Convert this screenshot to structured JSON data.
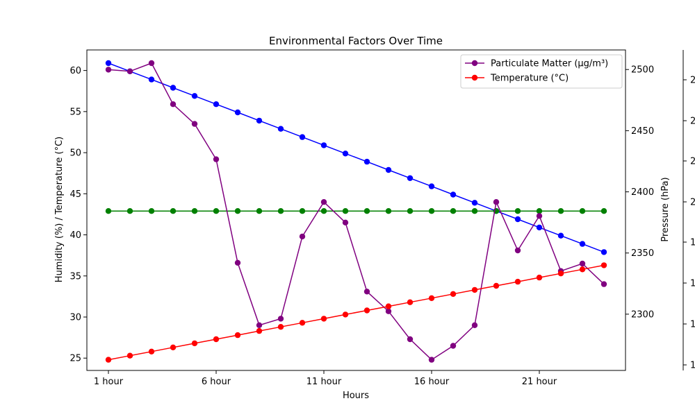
{
  "chart_data": {
    "type": "line",
    "title": "Environmental Factors Over Time",
    "xlabel": "Hours",
    "ylabel_left": "Humidity (%) / Temperature (°C)",
    "ylabel_right": "Pressure (hPa)",
    "x_tick_labels": [
      "1 hour",
      "6 hour",
      "11 hour",
      "16 hour",
      "21 hour"
    ],
    "x_tick_positions": [
      1,
      6,
      11,
      16,
      21
    ],
    "x_range": [
      0,
      25
    ],
    "ylim_left": [
      23.5,
      62.5
    ],
    "yticks_left": [
      25,
      30,
      35,
      40,
      45,
      50,
      55,
      60
    ],
    "ylim_right": [
      2254,
      2516
    ],
    "yticks_right": [
      2300,
      2350,
      2400,
      2450,
      2500
    ],
    "third_axis_ticks": [
      "1",
      "1",
      "1",
      "1",
      "2",
      "2",
      "2",
      "2"
    ],
    "legend": {
      "placement": "top-right",
      "entries": [
        "Particulate Matter (µg/m³)",
        "Temperature (°C)"
      ]
    },
    "hours": [
      1,
      2,
      3,
      4,
      5,
      6,
      7,
      8,
      9,
      10,
      11,
      12,
      13,
      14,
      15,
      16,
      17,
      18,
      19,
      20,
      21,
      22,
      23,
      24
    ],
    "series": [
      {
        "key": "humidity",
        "axis": "left",
        "color": "#0000ff",
        "values": [
          60.9,
          59.9,
          58.9,
          57.9,
          56.9,
          55.9,
          54.9,
          53.9,
          52.9,
          51.9,
          50.9,
          49.9,
          48.9,
          47.9,
          46.9,
          45.9,
          44.9,
          43.9,
          42.9,
          41.9,
          40.9,
          39.9,
          38.9,
          37.9
        ]
      },
      {
        "key": "flat",
        "axis": "left",
        "color": "#008000",
        "values": [
          42.9,
          42.9,
          42.9,
          42.9,
          42.9,
          42.9,
          42.9,
          42.9,
          42.9,
          42.9,
          42.9,
          42.9,
          42.9,
          42.9,
          42.9,
          42.9,
          42.9,
          42.9,
          42.9,
          42.9,
          42.9,
          42.9,
          42.9,
          42.9
        ]
      },
      {
        "name": "Particulate Matter (µg/m³)",
        "axis": "left",
        "color": "#800080",
        "values": [
          60.1,
          59.9,
          60.9,
          55.9,
          53.5,
          49.2,
          36.6,
          29.0,
          29.8,
          39.8,
          44.0,
          41.5,
          33.1,
          30.7,
          27.3,
          24.8,
          26.5,
          29.0,
          44.0,
          38.1,
          42.3,
          35.6,
          36.5,
          34.0
        ]
      },
      {
        "name": "Temperature (°C)",
        "axis": "left",
        "color": "#ff0000",
        "values": [
          24.8,
          25.3,
          25.8,
          26.3,
          26.8,
          27.3,
          27.8,
          28.3,
          28.8,
          29.3,
          29.8,
          30.3,
          30.8,
          31.3,
          31.8,
          32.3,
          32.8,
          33.3,
          33.8,
          34.3,
          34.8,
          35.3,
          35.8,
          36.3
        ]
      }
    ]
  }
}
